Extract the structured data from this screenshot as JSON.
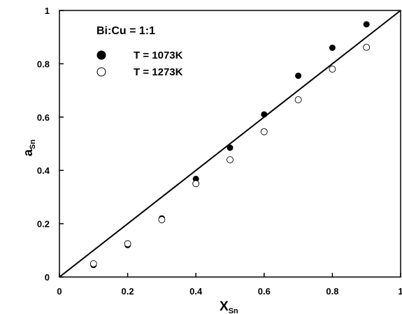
{
  "chart_data": {
    "type": "scatter",
    "annotation": "Bi:Cu = 1:1",
    "xlabel": {
      "main": "X",
      "sub": "Sn"
    },
    "ylabel": {
      "main": "a",
      "sub": "Sn"
    },
    "xlim": [
      0,
      1
    ],
    "ylim": [
      0,
      1
    ],
    "x_ticks": [
      0,
      0.2,
      0.4,
      0.6,
      0.8,
      1
    ],
    "y_ticks": [
      0,
      0.2,
      0.4,
      0.6,
      0.8,
      1
    ],
    "x_tick_labels": [
      "0",
      "0.2",
      "0.4",
      "0.6",
      "0.8",
      "1"
    ],
    "y_tick_labels": [
      "0",
      "0.2",
      "0.4",
      "0.6",
      "0.8",
      "1"
    ],
    "grid": false,
    "legend_position": "top-left",
    "series": [
      {
        "name": "T = 1073K",
        "marker": "filled-circle",
        "color": "#000000",
        "x": [
          0.1,
          0.2,
          0.3,
          0.4,
          0.5,
          0.6,
          0.7,
          0.8,
          0.9
        ],
        "y": [
          0.045,
          0.12,
          0.22,
          0.368,
          0.485,
          0.61,
          0.755,
          0.86,
          0.948
        ]
      },
      {
        "name": "T = 1273K",
        "marker": "open-circle",
        "color": "#000000",
        "x": [
          0.1,
          0.2,
          0.3,
          0.4,
          0.5,
          0.6,
          0.7,
          0.8,
          0.9
        ],
        "y": [
          0.05,
          0.125,
          0.215,
          0.35,
          0.44,
          0.545,
          0.665,
          0.78,
          0.862
        ]
      }
    ],
    "reference_line": {
      "x": [
        0,
        1
      ],
      "y": [
        0,
        1
      ]
    }
  }
}
